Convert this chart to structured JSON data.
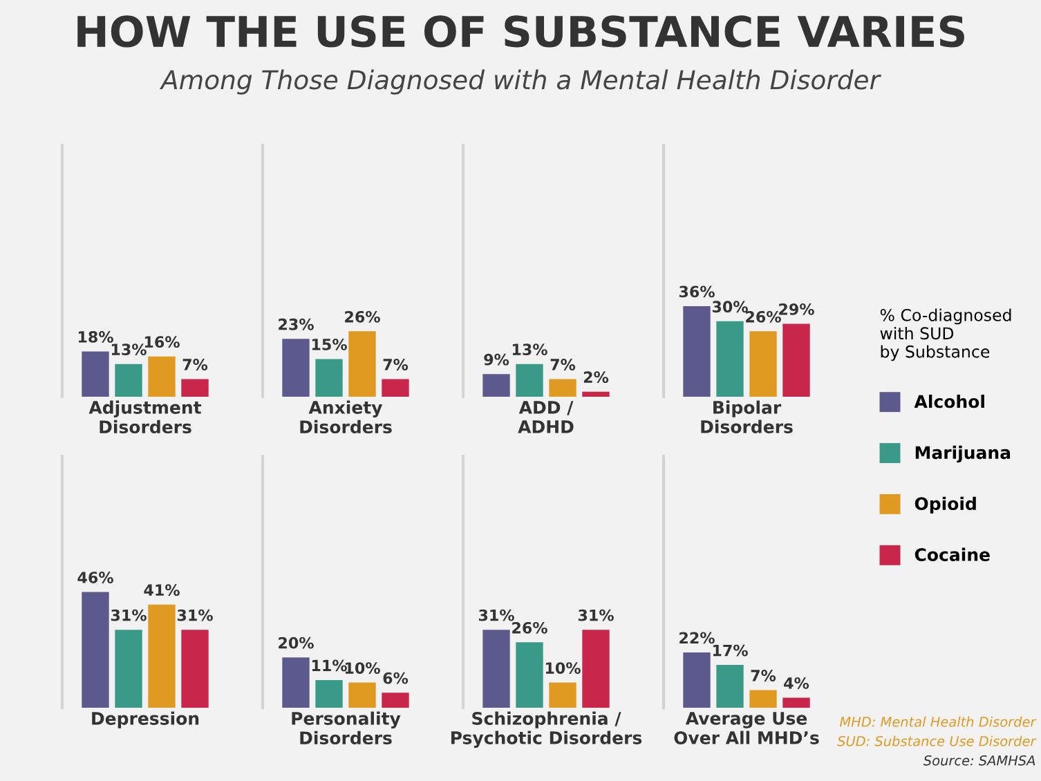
{
  "chart_data": [
    {
      "type": "bar",
      "title": "HOW THE USE OF SUBSTANCE VARIES",
      "subtitle": "Among Those Diagnosed with a Mental Health Disorder",
      "xlabel": "Adjustment\nDisorders",
      "categories": [
        null
      ],
      "ylim": [
        0,
        100
      ],
      "tick_labels": false,
      "series": [
        {
          "color": "#5c5a8c",
          "values": [
            18
          ],
          "value_labels": [
            "18%"
          ]
        },
        {
          "color": "#3a9a88",
          "values": [
            13
          ],
          "value_labels": [
            "13%"
          ]
        },
        {
          "color": "#e09a22",
          "values": [
            16
          ],
          "value_labels": [
            "16%"
          ]
        },
        {
          "color": "#c8264a",
          "values": [
            7
          ],
          "value_labels": [
            "7%"
          ]
        }
      ]
    },
    {
      "type": "bar",
      "xlabel": "Anxiety\nDisorders",
      "categories": [
        null
      ],
      "ylim": [
        0,
        100
      ],
      "tick_labels": false,
      "series": [
        {
          "color": "#5c5a8c",
          "values": [
            23
          ],
          "value_labels": [
            "23%"
          ]
        },
        {
          "color": "#3a9a88",
          "values": [
            15
          ],
          "value_labels": [
            "15%"
          ]
        },
        {
          "color": "#e09a22",
          "values": [
            26
          ],
          "value_labels": [
            "26%"
          ]
        },
        {
          "color": "#c8264a",
          "values": [
            7
          ],
          "value_labels": [
            "7%"
          ]
        }
      ]
    },
    {
      "type": "bar",
      "xlabel": "ADD /\nADHD",
      "categories": [
        null
      ],
      "ylim": [
        0,
        100
      ],
      "tick_labels": false,
      "series": [
        {
          "color": "#5c5a8c",
          "values": [
            9
          ],
          "value_labels": [
            "9%"
          ]
        },
        {
          "color": "#3a9a88",
          "values": [
            13
          ],
          "value_labels": [
            "13%"
          ]
        },
        {
          "color": "#e09a22",
          "values": [
            7
          ],
          "value_labels": [
            "7%"
          ]
        },
        {
          "color": "#c8264a",
          "values": [
            2
          ],
          "value_labels": [
            "2%"
          ]
        }
      ]
    },
    {
      "type": "bar",
      "xlabel": "Bipolar\nDisorders",
      "categories": [
        null
      ],
      "ylim": [
        0,
        100
      ],
      "tick_labels": false,
      "legend": "right",
      "legend_title": "% Co-diagnosed\nwith SUD\nby Substance",
      "series": [
        {
          "name": "Alcohol",
          "color": "#5c5a8c",
          "values": [
            36
          ],
          "value_labels": [
            "36%"
          ]
        },
        {
          "name": "Marijuana",
          "color": "#3a9a88",
          "values": [
            30
          ],
          "value_labels": [
            "30%"
          ]
        },
        {
          "name": "Opioid",
          "color": "#e09a22",
          "values": [
            26
          ],
          "value_labels": [
            "26%"
          ]
        },
        {
          "name": "Cocaine",
          "color": "#c8264a",
          "values": [
            29
          ],
          "value_labels": [
            "29%"
          ]
        }
      ]
    },
    {
      "type": "bar",
      "xlabel": "Depression",
      "categories": [
        null
      ],
      "ylim": [
        0,
        100
      ],
      "tick_labels": false,
      "series": [
        {
          "color": "#5c5a8c",
          "values": [
            46
          ],
          "value_labels": [
            "46%"
          ]
        },
        {
          "color": "#3a9a88",
          "values": [
            31
          ],
          "value_labels": [
            "31%"
          ]
        },
        {
          "color": "#e09a22",
          "values": [
            41
          ],
          "value_labels": [
            "41%"
          ]
        },
        {
          "color": "#c8264a",
          "values": [
            31
          ],
          "value_labels": [
            "31%"
          ]
        }
      ]
    },
    {
      "type": "bar",
      "xlabel": "Personality\nDisorders",
      "categories": [
        null
      ],
      "ylim": [
        0,
        100
      ],
      "tick_labels": false,
      "series": [
        {
          "color": "#5c5a8c",
          "values": [
            20
          ],
          "value_labels": [
            "20%"
          ]
        },
        {
          "color": "#3a9a88",
          "values": [
            11
          ],
          "value_labels": [
            "11%"
          ]
        },
        {
          "color": "#e09a22",
          "values": [
            10
          ],
          "value_labels": [
            "10%"
          ]
        },
        {
          "color": "#c8264a",
          "values": [
            6
          ],
          "value_labels": [
            "6%"
          ]
        }
      ]
    },
    {
      "type": "bar",
      "xlabel": "Schizophrenia /\nPsychotic Disorders",
      "categories": [
        null
      ],
      "ylim": [
        0,
        100
      ],
      "tick_labels": false,
      "series": [
        {
          "color": "#5c5a8c",
          "values": [
            31
          ],
          "value_labels": [
            "31%"
          ]
        },
        {
          "color": "#3a9a88",
          "values": [
            26
          ],
          "value_labels": [
            "26%"
          ]
        },
        {
          "color": "#e09a22",
          "values": [
            10
          ],
          "value_labels": [
            "10%"
          ]
        },
        {
          "color": "#c8264a",
          "values": [
            31
          ],
          "value_labels": [
            "31%"
          ]
        }
      ]
    },
    {
      "type": "bar",
      "xlabel": "Average Use\nOver All MHD’s",
      "categories": [
        null
      ],
      "ylim": [
        0,
        100
      ],
      "tick_labels": false,
      "annotations": [
        "MHD: Mental Health Disorder",
        "SUD: Substance Use Disorder",
        "Source: SAMHSA"
      ],
      "series": [
        {
          "color": "#5c5a8c",
          "values": [
            22
          ],
          "value_labels": [
            "22%"
          ]
        },
        {
          "color": "#3a9a88",
          "values": [
            17
          ],
          "value_labels": [
            "17%"
          ]
        },
        {
          "color": "#e09a22",
          "values": [
            7
          ],
          "value_labels": [
            "7%"
          ]
        },
        {
          "color": "#c8264a",
          "values": [
            4
          ],
          "value_labels": [
            "4%"
          ]
        }
      ]
    }
  ]
}
